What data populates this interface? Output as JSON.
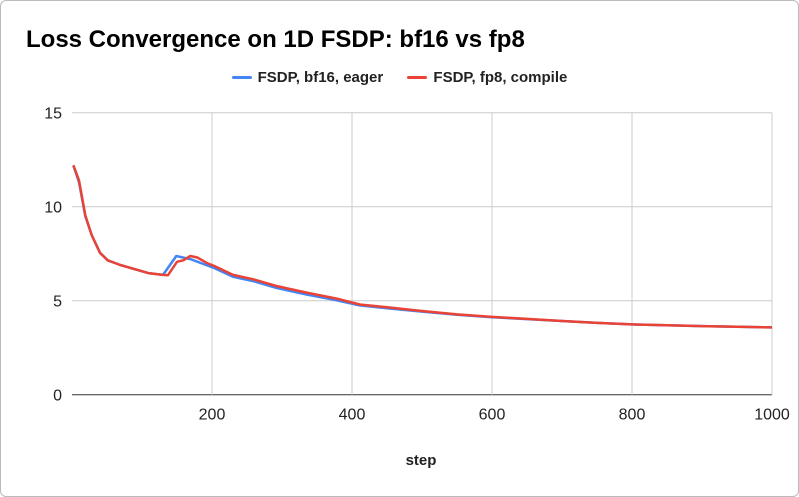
{
  "chart_data": {
    "type": "line",
    "title": "Loss Convergence on 1D FSDP: bf16 vs fp8",
    "xlabel": "step",
    "ylabel": "",
    "xlim": [
      0,
      1000
    ],
    "ylim": [
      0,
      15
    ],
    "x_ticks": [
      200,
      400,
      600,
      800,
      1000
    ],
    "y_ticks": [
      0,
      5,
      10,
      15
    ],
    "grid": true,
    "legend_position": "top",
    "series": [
      {
        "name": "FSDP, bf16, eager",
        "color": "#4285F4",
        "x": [
          2,
          10,
          19,
          28,
          40,
          51,
          69,
          109,
          130,
          149,
          170,
          203,
          230,
          259,
          292,
          335,
          378,
          411,
          450,
          500,
          550,
          600,
          650,
          700,
          750,
          800,
          850,
          900,
          950,
          1000
        ],
        "y": [
          12.2,
          11.3,
          9.5,
          8.5,
          7.55,
          7.15,
          6.9,
          6.47,
          6.37,
          7.38,
          7.2,
          6.74,
          6.27,
          6.04,
          5.68,
          5.33,
          5.02,
          4.75,
          4.6,
          4.42,
          4.25,
          4.12,
          4.02,
          3.92,
          3.82,
          3.74,
          3.69,
          3.65,
          3.61,
          3.58
        ]
      },
      {
        "name": "FSDP, fp8, compile",
        "color": "#EA4335",
        "x": [
          2,
          10,
          19,
          28,
          40,
          51,
          69,
          109,
          130,
          137,
          150,
          159,
          169,
          179,
          193,
          203,
          230,
          259,
          292,
          335,
          378,
          411,
          450,
          500,
          550,
          600,
          650,
          700,
          750,
          800,
          850,
          900,
          950,
          1000
        ],
        "y": [
          12.2,
          11.4,
          9.55,
          8.5,
          7.55,
          7.15,
          6.9,
          6.47,
          6.37,
          6.35,
          7.07,
          7.15,
          7.38,
          7.3,
          7.0,
          6.85,
          6.37,
          6.14,
          5.78,
          5.43,
          5.11,
          4.8,
          4.65,
          4.45,
          4.27,
          4.14,
          4.03,
          3.92,
          3.82,
          3.74,
          3.69,
          3.65,
          3.61,
          3.58
        ]
      }
    ]
  }
}
